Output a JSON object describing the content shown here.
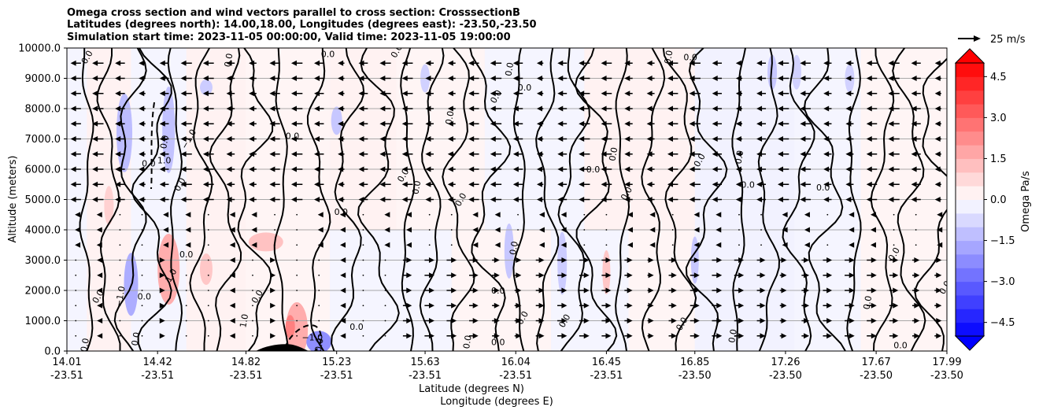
{
  "title_lines": [
    "Omega cross section and wind vectors parallel to cross section: CrosssectionB",
    "Latitudes (degrees north): 14.00,18.00, Longitudes (degrees east): -23.50,-23.50",
    "Simulation start time: 2023-11-05 00:00:00, Valid time: 2023-11-05 19:00:00"
  ],
  "chart_data": {
    "type": "heatmap",
    "subtype": "vertical cross section with filled contours, contour lines and wind vectors",
    "x_axis": {
      "label_line1": "Latitude (degrees N)",
      "label_line2": "Longitude (degrees E)",
      "ticks": [
        {
          "lat": "14.01",
          "lon": "-23.51"
        },
        {
          "lat": "14.42",
          "lon": "-23.51"
        },
        {
          "lat": "14.82",
          "lon": "-23.51"
        },
        {
          "lat": "15.23",
          "lon": "-23.51"
        },
        {
          "lat": "15.63",
          "lon": "-23.51"
        },
        {
          "lat": "16.04",
          "lon": "-23.51"
        },
        {
          "lat": "16.45",
          "lon": "-23.51"
        },
        {
          "lat": "16.85",
          "lon": "-23.50"
        },
        {
          "lat": "17.26",
          "lon": "-23.50"
        },
        {
          "lat": "17.67",
          "lon": "-23.50"
        },
        {
          "lat": "17.99",
          "lon": "-23.50"
        }
      ],
      "range": [
        14.01,
        17.99
      ]
    },
    "y_axis": {
      "label": "Altitude (meters)",
      "ticks": [
        "0.0",
        "1000.0",
        "2000.0",
        "3000.0",
        "4000.0",
        "5000.0",
        "6000.0",
        "7000.0",
        "8000.0",
        "9000.0",
        "10000.0"
      ],
      "range": [
        0,
        10000
      ],
      "grid": true
    },
    "colorbar": {
      "label": "Omega Pa/s",
      "tick_labels": [
        "4.5",
        "3.0",
        "1.5",
        "0.0",
        "−1.5",
        "−3.0",
        "−4.5"
      ],
      "tick_values": [
        4.5,
        3.0,
        1.5,
        0.0,
        -1.5,
        -3.0,
        -4.5
      ],
      "range": [
        -5.0,
        5.0
      ],
      "extend": "both",
      "colormap": "bwr",
      "color_max": "#ff0000",
      "color_mid": "#ffffff",
      "color_min": "#0000ff"
    },
    "vector_key": {
      "label": "25 m/s"
    },
    "contour_levels": [
      -1.0,
      0.0,
      1.0
    ],
    "contour_labels": [
      {
        "text": "0.0",
        "lat": 14.1,
        "alt": 9700
      },
      {
        "text": "0.0",
        "lat": 14.45,
        "alt": 6900
      },
      {
        "text": "0.0",
        "lat": 14.38,
        "alt": 6200
      },
      {
        "text": "0.0",
        "lat": 14.52,
        "alt": 5500
      },
      {
        "text": "0.0",
        "lat": 14.74,
        "alt": 9600
      },
      {
        "text": "0.0",
        "lat": 15.19,
        "alt": 9800
      },
      {
        "text": "0.0",
        "lat": 15.5,
        "alt": 9900
      },
      {
        "text": "0.0",
        "lat": 16.01,
        "alt": 9300
      },
      {
        "text": "0.0",
        "lat": 16.08,
        "alt": 8700
      },
      {
        "text": "0.0",
        "lat": 15.95,
        "alt": 8400
      },
      {
        "text": "0.0",
        "lat": 15.74,
        "alt": 7700
      },
      {
        "text": "0.0",
        "lat": 15.03,
        "alt": 7100
      },
      {
        "text": "0.0",
        "lat": 15.53,
        "alt": 5800
      },
      {
        "text": "0.0",
        "lat": 15.59,
        "alt": 5400
      },
      {
        "text": "0.0",
        "lat": 15.25,
        "alt": 4600
      },
      {
        "text": "0.0",
        "lat": 15.79,
        "alt": 5000
      },
      {
        "text": "0.0",
        "lat": 16.03,
        "alt": 3400
      },
      {
        "text": "0.0",
        "lat": 15.96,
        "alt": 2000
      },
      {
        "text": "0.0",
        "lat": 16.07,
        "alt": 1100
      },
      {
        "text": "0.0",
        "lat": 15.82,
        "alt": 300
      },
      {
        "text": "0.0",
        "lat": 15.96,
        "alt": 300
      },
      {
        "text": "0.0",
        "lat": 16.26,
        "alt": 1000
      },
      {
        "text": "0.0",
        "lat": 16.48,
        "alt": 6500
      },
      {
        "text": "0.0",
        "lat": 16.39,
        "alt": 6000
      },
      {
        "text": "0.0",
        "lat": 16.54,
        "alt": 5200
      },
      {
        "text": "0.0",
        "lat": 16.73,
        "alt": 9700
      },
      {
        "text": "0.0",
        "lat": 16.83,
        "alt": 9700
      },
      {
        "text": "0.0",
        "lat": 16.87,
        "alt": 6300
      },
      {
        "text": "0.0",
        "lat": 17.05,
        "alt": 6400
      },
      {
        "text": "0.0",
        "lat": 17.09,
        "alt": 5500
      },
      {
        "text": "0.0",
        "lat": 16.79,
        "alt": 900
      },
      {
        "text": "0.0",
        "lat": 17.02,
        "alt": 500
      },
      {
        "text": "0.0",
        "lat": 17.43,
        "alt": 5400
      },
      {
        "text": "0.0",
        "lat": 17.75,
        "alt": 3200
      },
      {
        "text": "0.0",
        "lat": 17.63,
        "alt": 1600
      },
      {
        "text": "0.0",
        "lat": 17.78,
        "alt": 200
      },
      {
        "text": "0.0",
        "lat": 17.98,
        "alt": 2100
      },
      {
        "text": "0.0",
        "lat": 14.32,
        "alt": 400
      },
      {
        "text": "0.0",
        "lat": 14.36,
        "alt": 1800
      },
      {
        "text": "0.0",
        "lat": 14.15,
        "alt": 1800
      },
      {
        "text": "0.0",
        "lat": 14.09,
        "alt": 200
      },
      {
        "text": "0.0",
        "lat": 14.55,
        "alt": 3200
      },
      {
        "text": "0.0",
        "lat": 14.87,
        "alt": 1800
      },
      {
        "text": "0.0",
        "lat": 15.15,
        "alt": 200
      },
      {
        "text": "0.0",
        "lat": 15.32,
        "alt": 800
      },
      {
        "text": "1.0",
        "lat": 14.48,
        "alt": 2500
      },
      {
        "text": "1.0",
        "lat": 14.81,
        "alt": 1000
      },
      {
        "text": "1.0",
        "lat": 14.45,
        "alt": 6300
      },
      {
        "text": "−1.0",
        "lat": 14.56,
        "alt": 7000
      },
      {
        "text": "−1.0",
        "lat": 14.25,
        "alt": 1800
      },
      {
        "text": "−1.0",
        "lat": 15.12,
        "alt": 450
      }
    ],
    "wind": "mostly easterly (pointing left) above 3500 m, westerly (pointing right) below 3000 m in the northern part; weak near 3500-4500 m"
  }
}
